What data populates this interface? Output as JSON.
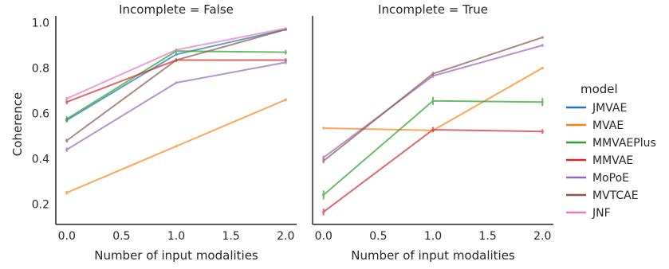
{
  "chart_data": {
    "type": "line",
    "ylabel": "Coherence",
    "xlabel": "Number of input modalities",
    "xlim": [
      -0.1,
      2.1
    ],
    "ylim": [
      0.11,
      1.03
    ],
    "xticks": [
      0.0,
      0.5,
      1.0,
      1.5,
      2.0
    ],
    "xtick_labels": [
      "0.0",
      "0.5",
      "1.0",
      "1.5",
      "2.0"
    ],
    "yticks": [
      0.2,
      0.4,
      0.6,
      0.8,
      1.0
    ],
    "ytick_labels": [
      "0.2",
      "0.4",
      "0.6",
      "0.8",
      "1.0"
    ],
    "grid": false,
    "legend": {
      "title": "model",
      "placement": "right",
      "entries": [
        {
          "name": "JMVAE",
          "color": "#1f77b4"
        },
        {
          "name": "MVAE",
          "color": "#ff7f0e"
        },
        {
          "name": "MMVAEPlus",
          "color": "#2ca02c"
        },
        {
          "name": "MMVAE",
          "color": "#d62728"
        },
        {
          "name": "MoPoE",
          "color": "#9467bd"
        },
        {
          "name": "MVTCAE",
          "color": "#8c564b"
        },
        {
          "name": "JNF",
          "color": "#e377c2"
        }
      ]
    },
    "panels": [
      {
        "title": "Incomplete = False",
        "x": [
          0,
          1,
          2
        ],
        "series": [
          {
            "name": "JMVAE",
            "values": [
              0.57,
              0.86,
              0.97
            ],
            "err": [
              0.01,
              0.005,
              0.005
            ]
          },
          {
            "name": "MVAE",
            "values": [
              0.25,
              0.455,
              0.66
            ],
            "err": [
              0.008,
              0.005,
              0.006
            ]
          },
          {
            "name": "MMVAEPlus",
            "values": [
              0.575,
              0.875,
              0.87
            ],
            "err": [
              0.012,
              0.01,
              0.01
            ]
          },
          {
            "name": "MMVAE",
            "values": [
              0.65,
              0.835,
              0.835
            ],
            "err": [
              0.01,
              0.008,
              0.008
            ]
          },
          {
            "name": "MoPoE",
            "values": [
              0.44,
              0.735,
              0.825
            ],
            "err": [
              0.01,
              0.005,
              0.008
            ]
          },
          {
            "name": "MVTCAE",
            "values": [
              0.48,
              0.835,
              0.97
            ],
            "err": [
              0.008,
              0.005,
              0.004
            ]
          },
          {
            "name": "JNF",
            "values": [
              0.665,
              0.88,
              0.975
            ],
            "err": [
              0.008,
              0.005,
              0.004
            ]
          }
        ]
      },
      {
        "title": "Incomplete = True",
        "x": [
          0,
          1,
          2
        ],
        "series": [
          {
            "name": "MVAE",
            "values": [
              0.535,
              0.525,
              0.8
            ],
            "err": [
              0.003,
              0.005,
              0.005
            ]
          },
          {
            "name": "MMVAEPlus",
            "values": [
              0.24,
              0.655,
              0.65
            ],
            "err": [
              0.02,
              0.018,
              0.018
            ]
          },
          {
            "name": "MMVAE",
            "values": [
              0.165,
              0.528,
              0.52
            ],
            "err": [
              0.015,
              0.012,
              0.01
            ]
          },
          {
            "name": "MoPoE",
            "values": [
              0.405,
              0.765,
              0.9
            ],
            "err": [
              0.01,
              0.008,
              0.006
            ]
          },
          {
            "name": "MVTCAE",
            "values": [
              0.39,
              0.775,
              0.935
            ],
            "err": [
              0.01,
              0.008,
              0.005
            ]
          }
        ]
      }
    ]
  }
}
